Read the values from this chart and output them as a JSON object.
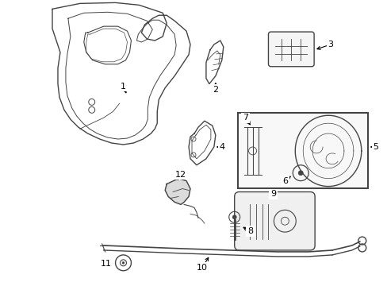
{
  "bg_color": "#ffffff",
  "line_color": "#444444",
  "fig_w": 4.89,
  "fig_h": 3.6,
  "dpi": 100
}
